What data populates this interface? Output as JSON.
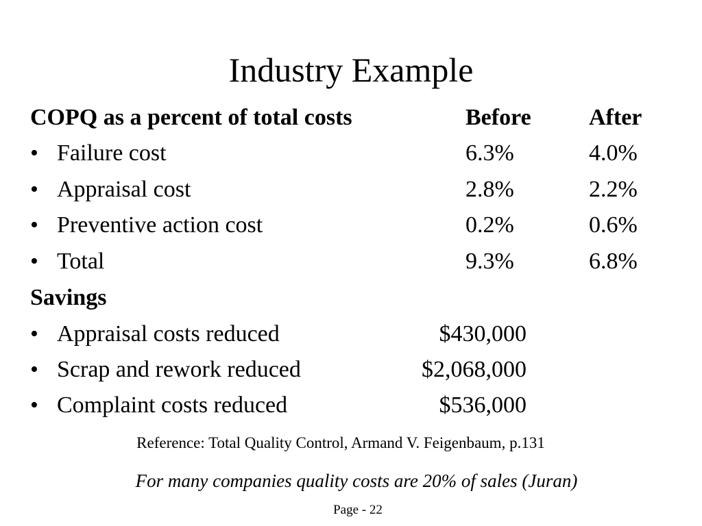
{
  "title": "Industry Example",
  "copq": {
    "heading": "COPQ as a percent of total costs",
    "before_label": "Before",
    "after_label": "After",
    "rows": [
      {
        "label": "Failure cost",
        "before": "6.3%",
        "after": "4.0%"
      },
      {
        "label": "Appraisal cost",
        "before": "2.8%",
        "after": "2.2%"
      },
      {
        "label": "Preventive action cost",
        "before": "0.2%",
        "after": "0.6%"
      },
      {
        "label": "Total",
        "before": "9.3%",
        "after": "6.8%"
      }
    ]
  },
  "savings": {
    "heading": "Savings",
    "rows": [
      {
        "label": "Appraisal costs reduced",
        "amount": "$430,000"
      },
      {
        "label": "Scrap and rework reduced",
        "amount": "$2,068,000"
      },
      {
        "label": "Complaint costs reduced",
        "amount": "$536,000"
      }
    ]
  },
  "bullet_char": "•",
  "reference": "Reference: Total Quality Control, Armand V. Feigenbaum, p.131",
  "quote": "For many companies quality costs are 20% of sales (Juran)",
  "page_number": "Page - 22"
}
